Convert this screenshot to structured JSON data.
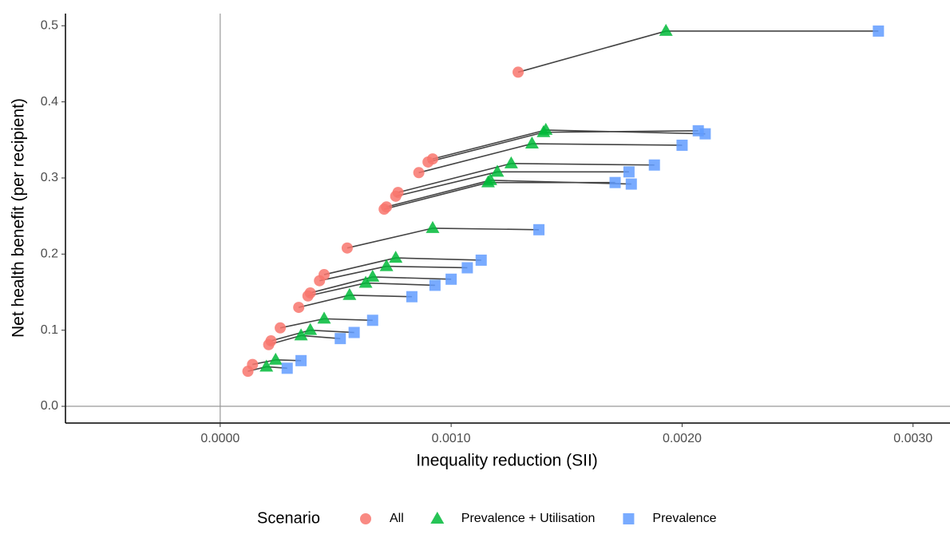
{
  "chart_data": {
    "type": "scatter",
    "x_label": "Inequality reduction (SII)",
    "y_label": "Net health benefit (per recipient)",
    "legend_title": "Scenario",
    "legend_position": "bottom",
    "connect_groups": true,
    "xlim": [
      -0.00067,
      0.00316
    ],
    "ylim": [
      -0.022,
      0.516
    ],
    "xticks": [
      {
        "value": 0,
        "label": "0.0000"
      },
      {
        "value": 0.001,
        "label": "0.0010"
      },
      {
        "value": 0.002,
        "label": "0.0020"
      },
      {
        "value": 0.003,
        "label": "0.0030"
      }
    ],
    "yticks": [
      {
        "value": 0,
        "label": "0.0"
      },
      0.1,
      0.2,
      0.3,
      0.4,
      0.5
    ],
    "series": [
      {
        "name": "All",
        "color": "#F8766D",
        "marker": "circle",
        "x": [
          0.00129,
          0.00092,
          0.0009,
          0.00086,
          0.00077,
          0.00076,
          0.00072,
          0.00071,
          0.00055,
          0.00045,
          0.00043,
          0.00039,
          0.00038,
          0.00034,
          0.00026,
          0.00022,
          0.00021,
          0.00014,
          0.00012
        ],
        "y": [
          0.439,
          0.325,
          0.321,
          0.307,
          0.281,
          0.276,
          0.262,
          0.259,
          0.208,
          0.173,
          0.165,
          0.149,
          0.145,
          0.13,
          0.103,
          0.086,
          0.081,
          0.055,
          0.046
        ]
      },
      {
        "name": "Prevalence + Utilisation",
        "color": "#00BA38",
        "marker": "triangle",
        "x": [
          0.00193,
          0.00141,
          0.0014,
          0.00135,
          0.00126,
          0.0012,
          0.00117,
          0.00116,
          0.00092,
          0.00076,
          0.00072,
          0.00066,
          0.00063,
          0.00056,
          0.00045,
          0.00039,
          0.00035,
          0.00024,
          0.0002
        ],
        "y": [
          0.493,
          0.363,
          0.36,
          0.345,
          0.319,
          0.308,
          0.297,
          0.294,
          0.234,
          0.195,
          0.184,
          0.17,
          0.162,
          0.146,
          0.115,
          0.1,
          0.093,
          0.061,
          0.052
        ]
      },
      {
        "name": "Prevalence",
        "color": "#619CFF",
        "marker": "square",
        "x": [
          0.00285,
          0.0021,
          0.00207,
          0.002,
          0.00188,
          0.00177,
          0.00178,
          0.00171,
          0.00138,
          0.00113,
          0.00107,
          0.001,
          0.00093,
          0.00083,
          0.00066,
          0.00058,
          0.00052,
          0.00035,
          0.00029
        ],
        "y": [
          0.493,
          0.358,
          0.362,
          0.343,
          0.317,
          0.308,
          0.292,
          0.294,
          0.232,
          0.192,
          0.182,
          0.167,
          0.159,
          0.144,
          0.113,
          0.097,
          0.089,
          0.06,
          0.05
        ]
      }
    ]
  }
}
